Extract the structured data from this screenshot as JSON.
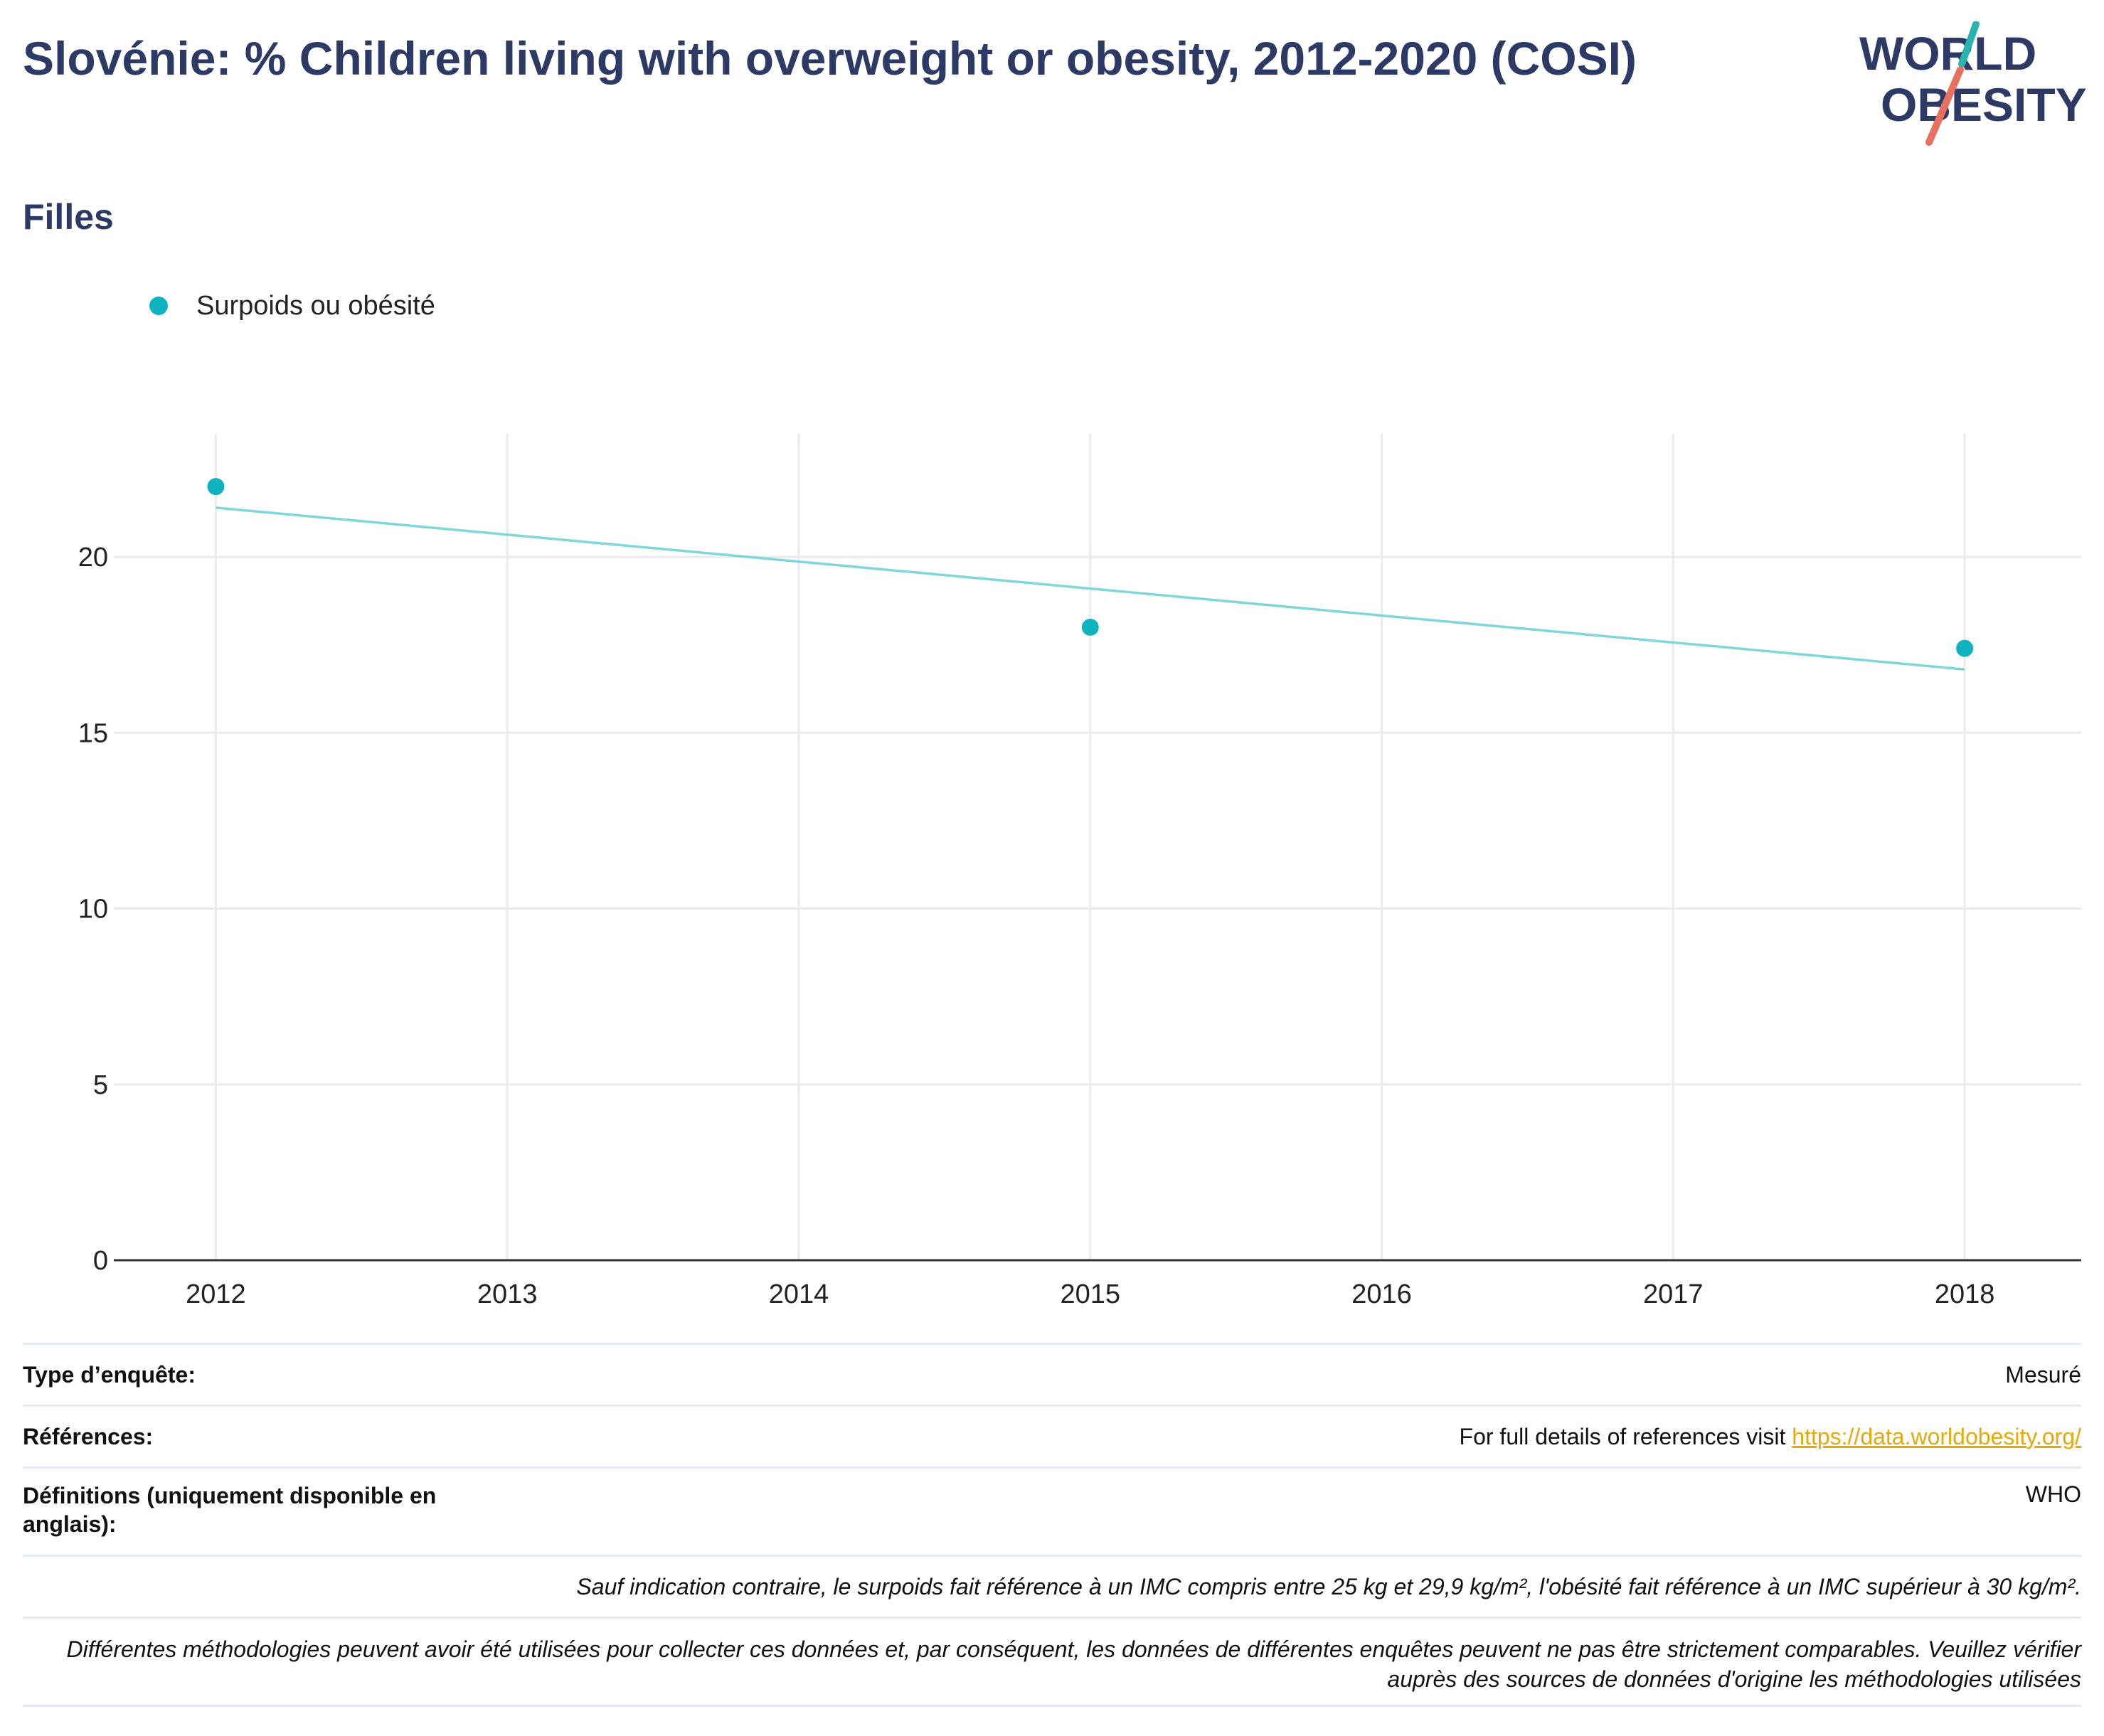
{
  "header": {
    "title": "Slovénie: % Children living with overweight or obesity, 2012-2020 (COSI)",
    "subtitle": "Filles"
  },
  "logo": {
    "line1": "WORLD",
    "line2": "OBESITY",
    "accent1": "#2bb3b1",
    "accent2": "#e8705f",
    "text_color": "#2d3a66"
  },
  "legend": {
    "label": "Surpoids ou obésité",
    "color": "#0fb3c0"
  },
  "chart_data": {
    "type": "scatter",
    "x": [
      2012,
      2015,
      2018
    ],
    "series": [
      {
        "name": "Surpoids ou obésité",
        "values": [
          22.0,
          18.0,
          17.4
        ],
        "color": "#0fb3c0"
      }
    ],
    "trendline": {
      "x": [
        2012,
        2018
      ],
      "y": [
        21.4,
        16.8
      ],
      "color": "#7fd6db"
    },
    "x_ticks": [
      "2012",
      "2013",
      "2014",
      "2015",
      "2016",
      "2017",
      "2018"
    ],
    "y_ticks": [
      "0",
      "5",
      "10",
      "15",
      "20"
    ],
    "xlim": [
      2011.65,
      2018.4
    ],
    "ylim": [
      0,
      23.5
    ],
    "grid": true
  },
  "info": {
    "survey_type_label": "Type d’enquête:",
    "survey_type_value": "Mesuré",
    "references_label": "Références:",
    "references_text": "For full details of references visit ",
    "references_link": "https://data.worldobesity.org/",
    "definitions_label": "Définitions (uniquement disponible en anglais):",
    "definitions_value": "WHO",
    "note_bmi": "Sauf indication contraire, le surpoids fait référence à un IMC compris entre 25 kg et 29,9 kg/m², l'obésité fait référence à un IMC supérieur à 30 kg/m².",
    "note_methods": "Différentes méthodologies peuvent avoir été utilisées pour collecter ces données et, par conséquent, les données de différentes enquêtes peuvent ne pas être strictement comparables. Veuillez vérifier auprès des sources de données d'origine les méthodologies utilisées"
  }
}
